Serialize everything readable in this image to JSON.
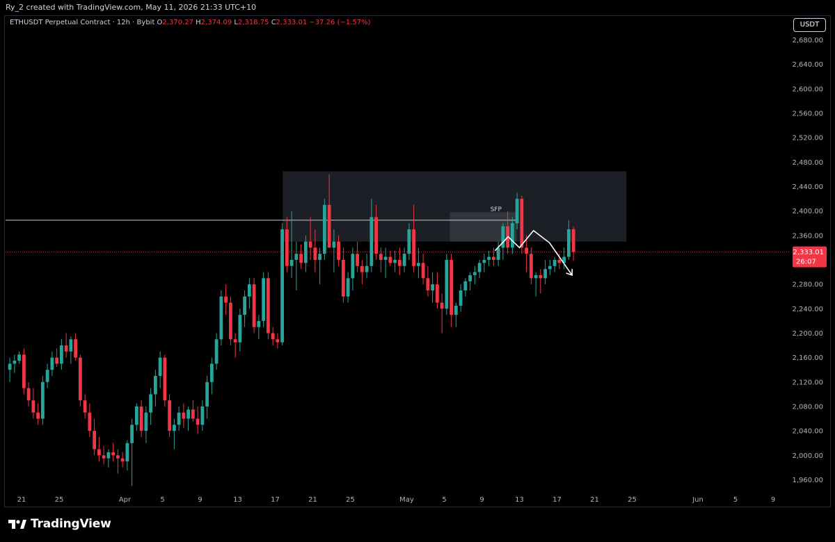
{
  "header": {
    "credit": "Ry_2 created with TradingView.com, May 11, 2026 21:33 UTC+10"
  },
  "legend": {
    "symbol": "ETHUSDT Perpetual Contract · 12h · Bybit",
    "o_label": "O",
    "o_value": "2,370.27",
    "h_label": "H",
    "h_value": "2,374.09",
    "l_label": "L",
    "l_value": "2,318.75",
    "c_label": "C",
    "c_value": "2,333.01",
    "change": "−37.26 (−1.57%)"
  },
  "unit_button": "USDT",
  "footer": {
    "brand": "TradingView"
  },
  "colors": {
    "up": "#26a69a",
    "down": "#f23645",
    "background": "#000000",
    "box": "#2a2d35",
    "axis_text": "#b2b5be"
  },
  "chart_data": {
    "type": "candlestick",
    "title": "",
    "timeframe": "12h",
    "ylim": [
      1940,
      2700
    ],
    "y_ticks": [
      "1,960.00",
      "2,000.00",
      "2,040.00",
      "2,080.00",
      "2,120.00",
      "2,160.00",
      "2,200.00",
      "2,240.00",
      "2,280.00",
      "2,320.00",
      "2,360.00",
      "2,400.00",
      "2,440.00",
      "2,480.00",
      "2,520.00",
      "2,560.00",
      "2,600.00",
      "2,640.00",
      "2,680.00"
    ],
    "x_ticks": [
      {
        "label": "21",
        "day": 0
      },
      {
        "label": "25",
        "day": 4
      },
      {
        "label": "Apr",
        "day": 11
      },
      {
        "label": "5",
        "day": 15
      },
      {
        "label": "9",
        "day": 19
      },
      {
        "label": "13",
        "day": 23
      },
      {
        "label": "17",
        "day": 27
      },
      {
        "label": "21",
        "day": 31
      },
      {
        "label": "25",
        "day": 35
      },
      {
        "label": "May",
        "day": 41
      },
      {
        "label": "5",
        "day": 45
      },
      {
        "label": "9",
        "day": 49
      },
      {
        "label": "13",
        "day": 53
      },
      {
        "label": "17",
        "day": 57
      },
      {
        "label": "21",
        "day": 61
      },
      {
        "label": "25",
        "day": 65
      },
      {
        "label": "Jun",
        "day": 72
      },
      {
        "label": "5",
        "day": 76
      },
      {
        "label": "9",
        "day": 80
      }
    ],
    "candles": [
      [
        2165,
        2180,
        2130,
        2140
      ],
      [
        2140,
        2160,
        2120,
        2150
      ],
      [
        2150,
        2165,
        2135,
        2155
      ],
      [
        2155,
        2170,
        2150,
        2165
      ],
      [
        2165,
        2175,
        2100,
        2110
      ],
      [
        2110,
        2120,
        2080,
        2090
      ],
      [
        2090,
        2110,
        2060,
        2070
      ],
      [
        2070,
        2085,
        2050,
        2060
      ],
      [
        2060,
        2130,
        2050,
        2120
      ],
      [
        2120,
        2150,
        2110,
        2140
      ],
      [
        2140,
        2170,
        2130,
        2160
      ],
      [
        2160,
        2175,
        2145,
        2150
      ],
      [
        2150,
        2190,
        2140,
        2180
      ],
      [
        2180,
        2200,
        2160,
        2170
      ],
      [
        2170,
        2195,
        2150,
        2190
      ],
      [
        2190,
        2200,
        2155,
        2160
      ],
      [
        2160,
        2165,
        2080,
        2090
      ],
      [
        2090,
        2100,
        2060,
        2070
      ],
      [
        2070,
        2085,
        2030,
        2040
      ],
      [
        2040,
        2060,
        2000,
        2010
      ],
      [
        2010,
        2030,
        1990,
        2000
      ],
      [
        2000,
        2015,
        1985,
        1995
      ],
      [
        1995,
        2010,
        1980,
        2005
      ],
      [
        2005,
        2020,
        1990,
        2000
      ],
      [
        2000,
        2010,
        1970,
        1995
      ],
      [
        1995,
        2005,
        1980,
        1990
      ],
      [
        1990,
        2025,
        1975,
        2020
      ],
      [
        2020,
        2060,
        1950,
        2050
      ],
      [
        2050,
        2085,
        2040,
        2080
      ],
      [
        2080,
        2090,
        2030,
        2040
      ],
      [
        2040,
        2080,
        2020,
        2070
      ],
      [
        2070,
        2110,
        2050,
        2100
      ],
      [
        2100,
        2140,
        2080,
        2130
      ],
      [
        2130,
        2170,
        2110,
        2160
      ],
      [
        2160,
        2165,
        2080,
        2090
      ],
      [
        2090,
        2100,
        2030,
        2040
      ],
      [
        2040,
        2060,
        2010,
        2050
      ],
      [
        2050,
        2080,
        2040,
        2070
      ],
      [
        2070,
        2085,
        2045,
        2060
      ],
      [
        2060,
        2080,
        2040,
        2075
      ],
      [
        2075,
        2090,
        2055,
        2060
      ],
      [
        2060,
        2080,
        2035,
        2050
      ],
      [
        2050,
        2090,
        2040,
        2080
      ],
      [
        2080,
        2130,
        2060,
        2120
      ],
      [
        2120,
        2160,
        2100,
        2150
      ],
      [
        2150,
        2200,
        2140,
        2190
      ],
      [
        2190,
        2270,
        2180,
        2260
      ],
      [
        2260,
        2280,
        2230,
        2250
      ],
      [
        2250,
        2260,
        2180,
        2190
      ],
      [
        2190,
        2200,
        2160,
        2185
      ],
      [
        2185,
        2240,
        2170,
        2230
      ],
      [
        2230,
        2270,
        2210,
        2260
      ],
      [
        2260,
        2290,
        2240,
        2280
      ],
      [
        2280,
        2290,
        2200,
        2210
      ],
      [
        2210,
        2230,
        2190,
        2220
      ],
      [
        2220,
        2300,
        2210,
        2290
      ],
      [
        2290,
        2300,
        2190,
        2200
      ],
      [
        2200,
        2210,
        2180,
        2190
      ],
      [
        2190,
        2200,
        2175,
        2185
      ],
      [
        2185,
        2380,
        2180,
        2370
      ],
      [
        2370,
        2390,
        2300,
        2310
      ],
      [
        2310,
        2400,
        2290,
        2320
      ],
      [
        2320,
        2350,
        2270,
        2330
      ],
      [
        2330,
        2345,
        2305,
        2315
      ],
      [
        2315,
        2360,
        2300,
        2350
      ],
      [
        2350,
        2390,
        2320,
        2340
      ],
      [
        2340,
        2370,
        2300,
        2320
      ],
      [
        2320,
        2340,
        2280,
        2330
      ],
      [
        2330,
        2420,
        2320,
        2410
      ],
      [
        2410,
        2460,
        2340,
        2340
      ],
      [
        2340,
        2370,
        2300,
        2350
      ],
      [
        2350,
        2360,
        2310,
        2320
      ],
      [
        2320,
        2340,
        2250,
        2260
      ],
      [
        2260,
        2300,
        2250,
        2290
      ],
      [
        2290,
        2340,
        2270,
        2330
      ],
      [
        2330,
        2350,
        2300,
        2310
      ],
      [
        2310,
        2320,
        2280,
        2300
      ],
      [
        2300,
        2330,
        2290,
        2310
      ],
      [
        2310,
        2420,
        2300,
        2390
      ],
      [
        2390,
        2410,
        2320,
        2330
      ],
      [
        2330,
        2340,
        2300,
        2320
      ],
      [
        2320,
        2340,
        2290,
        2325
      ],
      [
        2325,
        2335,
        2310,
        2315
      ],
      [
        2315,
        2335,
        2300,
        2320
      ],
      [
        2320,
        2340,
        2295,
        2310
      ],
      [
        2310,
        2340,
        2300,
        2330
      ],
      [
        2330,
        2380,
        2320,
        2370
      ],
      [
        2370,
        2410,
        2300,
        2310
      ],
      [
        2310,
        2340,
        2290,
        2315
      ],
      [
        2315,
        2330,
        2280,
        2290
      ],
      [
        2290,
        2310,
        2260,
        2270
      ],
      [
        2270,
        2300,
        2250,
        2280
      ],
      [
        2280,
        2300,
        2240,
        2250
      ],
      [
        2250,
        2265,
        2200,
        2240
      ],
      [
        2240,
        2330,
        2230,
        2320
      ],
      [
        2320,
        2330,
        2210,
        2230
      ],
      [
        2230,
        2250,
        2210,
        2245
      ],
      [
        2245,
        2280,
        2235,
        2270
      ],
      [
        2270,
        2290,
        2260,
        2285
      ],
      [
        2285,
        2300,
        2270,
        2295
      ],
      [
        2295,
        2310,
        2280,
        2300
      ],
      [
        2300,
        2320,
        2290,
        2315
      ],
      [
        2315,
        2330,
        2300,
        2320
      ],
      [
        2320,
        2335,
        2310,
        2325
      ],
      [
        2325,
        2340,
        2310,
        2320
      ],
      [
        2320,
        2350,
        2310,
        2340
      ],
      [
        2340,
        2380,
        2320,
        2375
      ],
      [
        2375,
        2400,
        2330,
        2340
      ],
      [
        2340,
        2390,
        2330,
        2380
      ],
      [
        2380,
        2430,
        2370,
        2420
      ],
      [
        2420,
        2425,
        2330,
        2340
      ],
      [
        2340,
        2360,
        2300,
        2330
      ],
      [
        2330,
        2340,
        2280,
        2290
      ],
      [
        2290,
        2300,
        2260,
        2295
      ],
      [
        2295,
        2305,
        2265,
        2290
      ],
      [
        2290,
        2320,
        2280,
        2305
      ],
      [
        2305,
        2320,
        2295,
        2310
      ],
      [
        2310,
        2325,
        2300,
        2320
      ],
      [
        2320,
        2330,
        2305,
        2315
      ],
      [
        2315,
        2340,
        2305,
        2325
      ],
      [
        2325,
        2385,
        2320,
        2370
      ],
      [
        2370.27,
        2374.09,
        2318.75,
        2333.01
      ]
    ],
    "first_candle_day": -2,
    "candles_per_day": 2,
    "horizontal_line": 2385,
    "current_price": 2333.01,
    "price_label": "2,333.01",
    "countdown": "26:07",
    "zones": [
      {
        "day_start": 27.8,
        "day_end": 64.4,
        "price_low": 2350,
        "price_high": 2465
      },
      {
        "day_start": 45.6,
        "day_end": 52.7,
        "price_low": 2350,
        "price_high": 2398
      }
    ],
    "annotation": {
      "text": "SFP",
      "day": 50.5,
      "price": 2395
    },
    "projection": [
      [
        50.4,
        2335
      ],
      [
        51.8,
        2358
      ],
      [
        53.0,
        2340
      ],
      [
        54.5,
        2368
      ],
      [
        56.2,
        2348
      ],
      [
        58.6,
        2295
      ]
    ]
  }
}
